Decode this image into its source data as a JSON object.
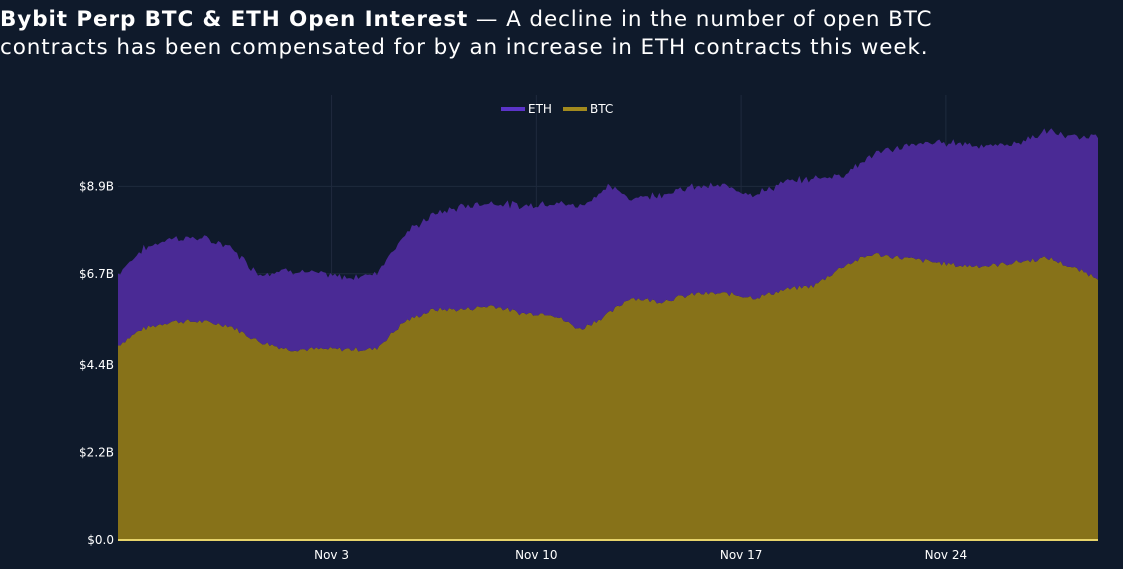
{
  "title_bold": "Bybit Perp BTC & ETH Open Interest",
  "title_rest_line1": " — A decline in the number of open BTC",
  "title_line2": "contracts has been compensated for by an increase in ETH contracts this week.",
  "colors": {
    "background": "#0f1a2b",
    "eth": "#4a2a95",
    "btc": "#877219",
    "btc_line": "#e6d36a",
    "eth_legend": "#5b34c8",
    "btc_legend": "#a28a1e",
    "grid": "#1f2a3d"
  },
  "chart_data": {
    "type": "area",
    "stacked": true,
    "title": "Bybit Perp BTC & ETH Open Interest",
    "xlabel": "",
    "ylabel": "",
    "x_range_days": [
      -4.3,
      29.2
    ],
    "ylim": [
      0,
      11.2
    ],
    "y_unit": "B USD",
    "yticks": [
      {
        "value": 0,
        "label": "$0.0"
      },
      {
        "value": 2.2,
        "label": "$2.2B"
      },
      {
        "value": 4.4,
        "label": "$4.4B"
      },
      {
        "value": 6.7,
        "label": "$6.7B"
      },
      {
        "value": 8.9,
        "label": "$8.9B"
      }
    ],
    "xticks": [
      {
        "day": 3,
        "label": "Nov 3"
      },
      {
        "day": 10,
        "label": "Nov 10"
      },
      {
        "day": 17,
        "label": "Nov 17"
      },
      {
        "day": 24,
        "label": "Nov 24"
      }
    ],
    "legend": {
      "position": "top-center",
      "entries": [
        "ETH",
        "BTC"
      ]
    },
    "x_days": [
      -4.3,
      -3.5,
      -2.5,
      -1.5,
      -0.5,
      0.5,
      1.5,
      2.5,
      3.5,
      4.5,
      5.5,
      6.5,
      7.5,
      8.5,
      9.5,
      10.5,
      11.5,
      12.5,
      13.2,
      14.2,
      15.5,
      16.5,
      17.5,
      18.5,
      19.5,
      20.5,
      21.5,
      22.5,
      23.5,
      24.5,
      25.5,
      26.5,
      27.5,
      28.5,
      29.2
    ],
    "series": [
      {
        "name": "BTC",
        "values": [
          4.9,
          5.3,
          5.5,
          5.5,
          5.4,
          5.0,
          4.8,
          4.8,
          4.8,
          4.8,
          5.5,
          5.8,
          5.8,
          5.9,
          5.7,
          5.7,
          5.3,
          5.7,
          6.1,
          6.0,
          6.2,
          6.2,
          6.1,
          6.3,
          6.4,
          6.9,
          7.2,
          7.1,
          7.0,
          6.9,
          6.9,
          7.0,
          7.1,
          6.8,
          6.6
        ]
      },
      {
        "name": "ETH",
        "values": [
          1.8,
          2.0,
          2.1,
          2.1,
          2.0,
          1.7,
          2.0,
          1.9,
          1.8,
          1.9,
          2.2,
          2.4,
          2.6,
          2.6,
          2.7,
          2.8,
          3.1,
          3.2,
          2.5,
          2.7,
          2.7,
          2.7,
          2.6,
          2.7,
          2.7,
          2.3,
          2.5,
          2.8,
          3.0,
          3.1,
          3.0,
          3.0,
          3.2,
          3.3,
          3.6
        ]
      }
    ]
  }
}
